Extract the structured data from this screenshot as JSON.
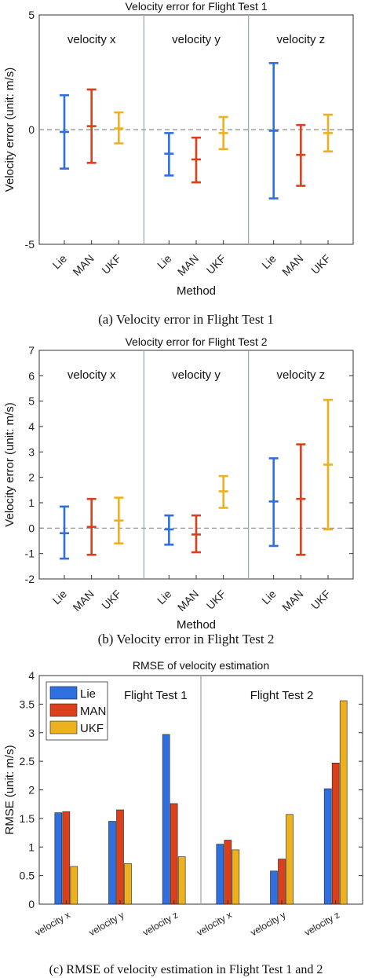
{
  "colors": {
    "lie": "#2F6FE0",
    "man": "#D9401B",
    "ukf": "#EDB120",
    "axis": "#333333",
    "divider": "#9aa4ad",
    "zero_line": "#8c8c8c"
  },
  "chart_data": [
    {
      "type": "errorbar",
      "title": "Velocity error for Flight Test 1",
      "ylabel": "Velocity error (unit: m/s)",
      "xlabel": "Method",
      "ylim": [
        -5,
        5
      ],
      "yticks": [
        "-5",
        "0",
        "5"
      ],
      "yticks_values": [
        -5,
        0,
        5
      ],
      "zero_line": true,
      "panels": [
        "velocity x",
        "velocity y",
        "velocity z"
      ],
      "methods": [
        "Lie",
        "MAN",
        "UKF"
      ],
      "caption": "(a)  Velocity error in Flight Test 1",
      "series": [
        {
          "panel": "velocity x",
          "method": "Lie",
          "mean": -0.1,
          "low": -1.7,
          "high": 1.5
        },
        {
          "panel": "velocity x",
          "method": "MAN",
          "mean": 0.15,
          "low": -1.45,
          "high": 1.75
        },
        {
          "panel": "velocity x",
          "method": "UKF",
          "mean": 0.05,
          "low": -0.6,
          "high": 0.75
        },
        {
          "panel": "velocity y",
          "method": "Lie",
          "mean": -1.05,
          "low": -2.0,
          "high": -0.15
        },
        {
          "panel": "velocity y",
          "method": "MAN",
          "mean": -1.3,
          "low": -2.3,
          "high": -0.35
        },
        {
          "panel": "velocity y",
          "method": "UKF",
          "mean": -0.15,
          "low": -0.85,
          "high": 0.55
        },
        {
          "panel": "velocity z",
          "method": "Lie",
          "mean": -0.05,
          "low": -3.0,
          "high": 2.9
        },
        {
          "panel": "velocity z",
          "method": "MAN",
          "mean": -1.1,
          "low": -2.45,
          "high": 0.2
        },
        {
          "panel": "velocity z",
          "method": "UKF",
          "mean": -0.15,
          "low": -0.95,
          "high": 0.65
        }
      ]
    },
    {
      "type": "errorbar",
      "title": "Velocity error for Flight Test 2",
      "ylabel": "Velocity error (unit: m/s)",
      "xlabel": "Method",
      "ylim": [
        -2,
        7
      ],
      "yticks": [
        "-2",
        "-1",
        "0",
        "1",
        "2",
        "3",
        "4",
        "5",
        "6",
        "7"
      ],
      "yticks_values": [
        -2,
        -1,
        0,
        1,
        2,
        3,
        4,
        5,
        6,
        7
      ],
      "zero_line": true,
      "panels": [
        "velocity x",
        "velocity y",
        "velocity z"
      ],
      "methods": [
        "Lie",
        "MAN",
        "UKF"
      ],
      "caption": "(b)  Velocity error in Flight Test 2",
      "series": [
        {
          "panel": "velocity x",
          "method": "Lie",
          "mean": -0.2,
          "low": -1.2,
          "high": 0.85
        },
        {
          "panel": "velocity x",
          "method": "MAN",
          "mean": 0.05,
          "low": -1.05,
          "high": 1.15
        },
        {
          "panel": "velocity x",
          "method": "UKF",
          "mean": 0.3,
          "low": -0.6,
          "high": 1.2
        },
        {
          "panel": "velocity y",
          "method": "Lie",
          "mean": -0.05,
          "low": -0.65,
          "high": 0.5
        },
        {
          "panel": "velocity y",
          "method": "MAN",
          "mean": -0.25,
          "low": -0.95,
          "high": 0.5
        },
        {
          "panel": "velocity y",
          "method": "UKF",
          "mean": 1.45,
          "low": 0.8,
          "high": 2.05
        },
        {
          "panel": "velocity z",
          "method": "Lie",
          "mean": 1.05,
          "low": -0.7,
          "high": 2.75
        },
        {
          "panel": "velocity z",
          "method": "MAN",
          "mean": 1.15,
          "low": -1.05,
          "high": 3.3
        },
        {
          "panel": "velocity z",
          "method": "UKF",
          "mean": 2.5,
          "low": -0.05,
          "high": 5.05
        }
      ]
    },
    {
      "type": "bar",
      "title": "RMSE of velocity estimation",
      "ylabel": "RMSE (unit: m/s)",
      "ylim": [
        0,
        4
      ],
      "yticks": [
        "0",
        "0.5",
        "1",
        "1.5",
        "2",
        "2.5",
        "3",
        "3.5",
        "4"
      ],
      "yticks_values": [
        0,
        0.5,
        1,
        1.5,
        2,
        2.5,
        3,
        3.5,
        4
      ],
      "groups": [
        "Flight Test 1",
        "Flight Test 2"
      ],
      "categories": [
        "velocity x",
        "velocity y",
        "velocity z",
        "velocity x",
        "velocity y",
        "velocity z"
      ],
      "series": [
        {
          "name": "Lie",
          "values": [
            1.6,
            1.45,
            2.97,
            1.05,
            0.58,
            2.02
          ]
        },
        {
          "name": "MAN",
          "values": [
            1.62,
            1.65,
            1.76,
            1.12,
            0.79,
            2.47
          ]
        },
        {
          "name": "UKF",
          "values": [
            0.66,
            0.71,
            0.83,
            0.95,
            1.57,
            3.56
          ]
        }
      ],
      "legend": "top-left",
      "caption": "(c)  RMSE of velocity estimation in Flight Test 1 and 2"
    }
  ]
}
